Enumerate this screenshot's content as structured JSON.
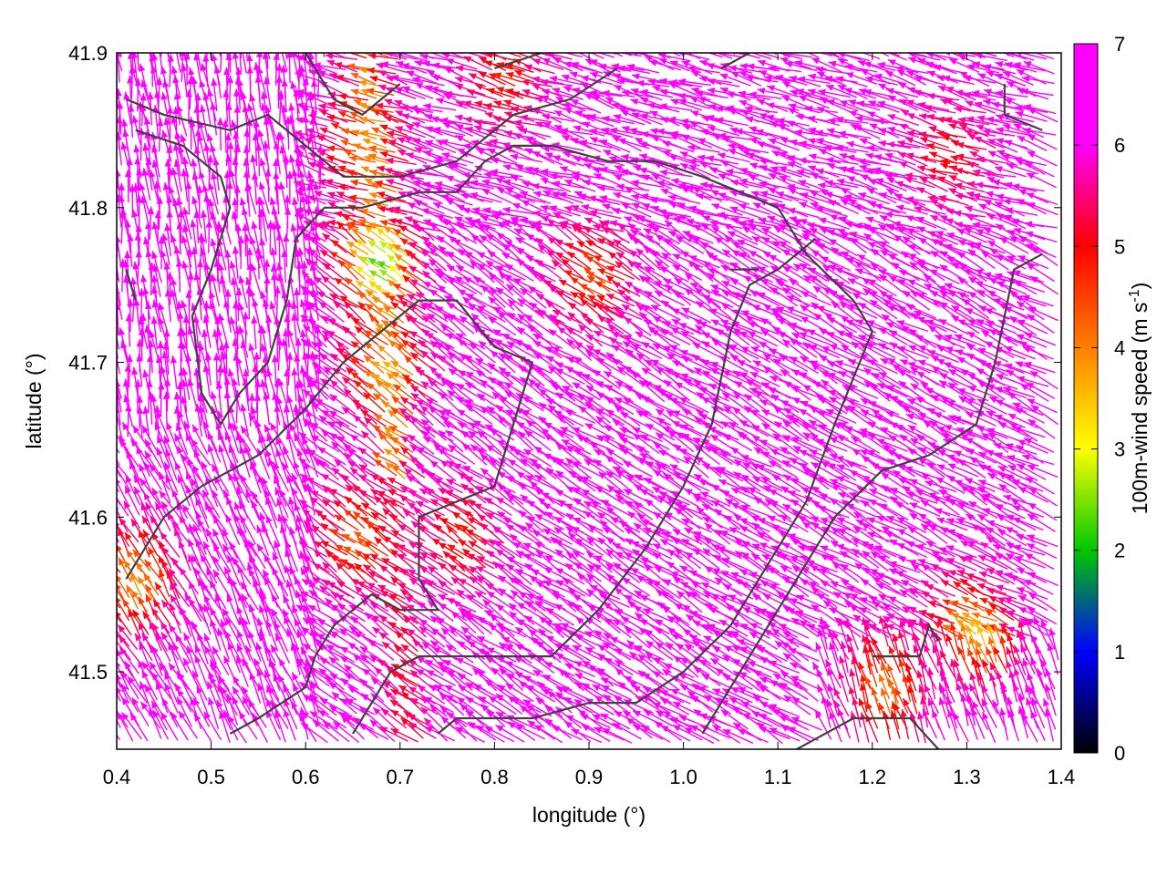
{
  "chart_data": {
    "type": "vector-field",
    "xlabel": "longitude (°)",
    "ylabel": "latitude (°)",
    "xlim": [
      0.4,
      1.4
    ],
    "ylim": [
      41.45,
      41.9
    ],
    "x_ticks": [
      "0.4",
      "0.5",
      "0.6",
      "0.7",
      "0.8",
      "0.9",
      "1.0",
      "1.1",
      "1.2",
      "1.3",
      "1.4"
    ],
    "y_ticks": [
      "41.5",
      "41.6",
      "41.7",
      "41.8",
      "41.9"
    ],
    "colorbar": {
      "label_main": "100m-wind speed (m s",
      "label_sup": "-1",
      "label_end": ")",
      "range": [
        0,
        7
      ],
      "ticks": [
        "0",
        "1",
        "2",
        "3",
        "4",
        "5",
        "6",
        "7"
      ],
      "palette": [
        "#000000",
        "#0000ff",
        "#00c800",
        "#ffff00",
        "#ff8000",
        "#ff0000",
        "#ff00ff"
      ]
    },
    "field": {
      "note_units": "speed m s-1",
      "background_speed": 7,
      "low_speed_zones": [
        {
          "lon": 0.69,
          "lat": 41.76,
          "speed": 2.6
        },
        {
          "lon": 0.68,
          "lat": 41.84,
          "speed": 4.6
        },
        {
          "lon": 0.7,
          "lat": 41.69,
          "speed": 4.2
        },
        {
          "lon": 0.67,
          "lat": 41.58,
          "speed": 5.0
        },
        {
          "lon": 0.78,
          "lat": 41.58,
          "speed": 5.6
        },
        {
          "lon": 0.92,
          "lat": 41.75,
          "speed": 5.2
        },
        {
          "lon": 0.83,
          "lat": 41.88,
          "speed": 5.6
        },
        {
          "lon": 1.22,
          "lat": 41.48,
          "speed": 4.8
        },
        {
          "lon": 1.32,
          "lat": 41.52,
          "speed": 4.0
        },
        {
          "lon": 0.43,
          "lat": 41.55,
          "speed": 4.5
        },
        {
          "lon": 1.3,
          "lat": 41.83,
          "speed": 5.8
        }
      ]
    },
    "contours": [
      [
        [
          0.41,
          41.87
        ],
        [
          0.45,
          41.86
        ],
        [
          0.52,
          41.85
        ],
        [
          0.56,
          41.86
        ],
        [
          0.6,
          41.84
        ],
        [
          0.64,
          41.82
        ],
        [
          0.7,
          41.82
        ],
        [
          0.76,
          41.83
        ],
        [
          0.82,
          41.86
        ],
        [
          0.88,
          41.87
        ],
        [
          0.93,
          41.89
        ]
      ],
      [
        [
          0.42,
          41.85
        ],
        [
          0.47,
          41.84
        ],
        [
          0.51,
          41.82
        ],
        [
          0.52,
          41.8
        ],
        [
          0.5,
          41.76
        ],
        [
          0.48,
          41.73
        ],
        [
          0.49,
          41.68
        ],
        [
          0.51,
          41.66
        ],
        [
          0.53,
          41.68
        ],
        [
          0.56,
          41.7
        ],
        [
          0.58,
          41.74
        ],
        [
          0.59,
          41.78
        ],
        [
          0.62,
          41.8
        ],
        [
          0.66,
          41.8
        ],
        [
          0.72,
          41.81
        ],
        [
          0.76,
          41.81
        ],
        [
          0.79,
          41.83
        ],
        [
          0.82,
          41.84
        ],
        [
          0.86,
          41.84
        ],
        [
          0.92,
          41.83
        ],
        [
          0.97,
          41.83
        ],
        [
          1.02,
          41.82
        ],
        [
          1.06,
          41.81
        ],
        [
          1.1,
          41.8
        ],
        [
          1.13,
          41.77
        ],
        [
          1.18,
          41.74
        ],
        [
          1.2,
          41.72
        ],
        [
          1.18,
          41.69
        ],
        [
          1.16,
          41.66
        ],
        [
          1.13,
          41.61
        ],
        [
          1.09,
          41.57
        ],
        [
          1.05,
          41.53
        ],
        [
          1.0,
          41.5
        ],
        [
          0.95,
          41.48
        ],
        [
          0.9,
          41.48
        ],
        [
          0.84,
          41.47
        ],
        [
          0.79,
          41.47
        ],
        [
          0.76,
          41.47
        ],
        [
          0.74,
          41.46
        ]
      ],
      [
        [
          0.41,
          41.56
        ],
        [
          0.45,
          41.6
        ],
        [
          0.49,
          41.62
        ],
        [
          0.55,
          41.64
        ],
        [
          0.6,
          41.67
        ],
        [
          0.64,
          41.7
        ],
        [
          0.68,
          41.72
        ],
        [
          0.72,
          41.74
        ],
        [
          0.76,
          41.74
        ],
        [
          0.8,
          41.71
        ],
        [
          0.84,
          41.7
        ],
        [
          0.82,
          41.66
        ],
        [
          0.8,
          41.62
        ],
        [
          0.76,
          41.61
        ],
        [
          0.72,
          41.6
        ],
        [
          0.72,
          41.56
        ],
        [
          0.74,
          41.54
        ],
        [
          0.7,
          41.54
        ],
        [
          0.67,
          41.55
        ],
        [
          0.63,
          41.53
        ],
        [
          0.61,
          41.51
        ],
        [
          0.6,
          41.49
        ],
        [
          0.55,
          41.47
        ],
        [
          0.52,
          41.46
        ]
      ],
      [
        [
          0.65,
          41.46
        ],
        [
          0.69,
          41.5
        ],
        [
          0.72,
          41.51
        ],
        [
          0.8,
          41.51
        ],
        [
          0.86,
          41.51
        ],
        [
          0.91,
          41.54
        ],
        [
          0.96,
          41.58
        ],
        [
          1.0,
          41.62
        ],
        [
          1.03,
          41.66
        ],
        [
          1.05,
          41.72
        ],
        [
          1.07,
          41.75
        ],
        [
          1.1,
          41.76
        ],
        [
          1.14,
          41.78
        ]
      ],
      [
        [
          1.02,
          41.46
        ],
        [
          1.06,
          41.5
        ],
        [
          1.11,
          41.55
        ],
        [
          1.16,
          41.6
        ],
        [
          1.21,
          41.63
        ],
        [
          1.26,
          41.64
        ],
        [
          1.31,
          41.66
        ],
        [
          1.33,
          41.7
        ],
        [
          1.35,
          41.76
        ],
        [
          1.38,
          41.77
        ]
      ],
      [
        [
          1.12,
          41.45
        ],
        [
          1.18,
          41.47
        ],
        [
          1.24,
          41.47
        ],
        [
          1.27,
          41.45
        ]
      ],
      [
        [
          1.2,
          41.51
        ],
        [
          1.25,
          41.51
        ],
        [
          1.26,
          41.53
        ],
        [
          1.27,
          41.52
        ]
      ],
      [
        [
          1.34,
          41.88
        ],
        [
          1.34,
          41.86
        ],
        [
          1.38,
          41.85
        ]
      ],
      [
        [
          0.6,
          41.9
        ],
        [
          0.63,
          41.87
        ],
        [
          0.66,
          41.86
        ],
        [
          0.7,
          41.88
        ]
      ],
      [
        [
          0.8,
          41.89
        ],
        [
          0.85,
          41.9
        ]
      ],
      [
        [
          1.04,
          41.89
        ],
        [
          1.07,
          41.9
        ]
      ],
      [
        [
          1.05,
          41.76
        ],
        [
          1.08,
          41.76
        ]
      ],
      [
        [
          0.41,
          41.76
        ],
        [
          0.42,
          41.74
        ]
      ]
    ]
  }
}
